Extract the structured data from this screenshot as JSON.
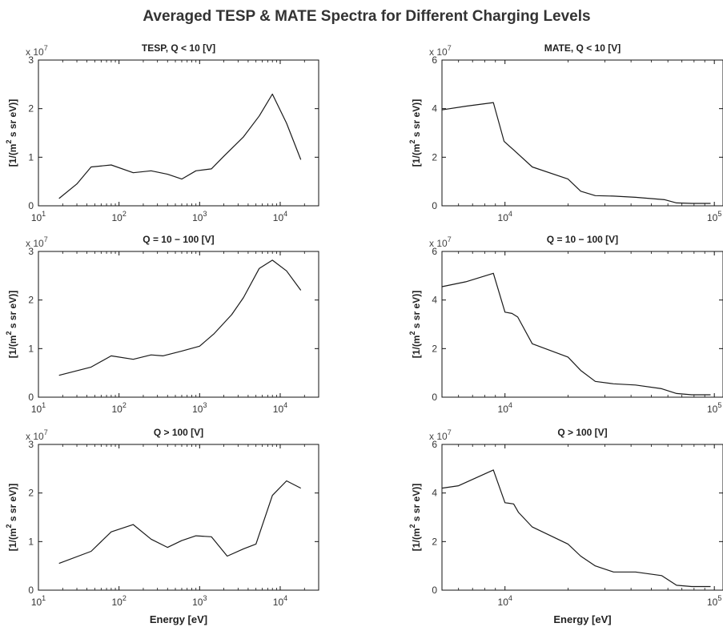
{
  "figure_title": "Averaged TESP & MATE Spectra for Different Charging Levels",
  "chart_data": [
    {
      "type": "line",
      "title": "TESP, Q < 10 [V]",
      "xlabel": "",
      "ylabel": "[1/(m^2 s sr eV)]",
      "y_scale_label": "x 10^7",
      "x_scale": "log",
      "xlim": [
        10,
        30000
      ],
      "ylim": [
        0,
        3
      ],
      "x_ticks": [
        "10^1",
        "10^2",
        "10^3",
        "10^4"
      ],
      "y_ticks": [
        "0",
        "1",
        "2",
        "3"
      ],
      "series": [
        {
          "x": [
            18,
            30,
            45,
            80,
            150,
            250,
            400,
            600,
            900,
            1400,
            2000,
            3500,
            5500,
            8000,
            12000,
            18000
          ],
          "y": [
            0.15,
            0.45,
            0.8,
            0.84,
            0.68,
            0.72,
            0.65,
            0.55,
            0.72,
            0.76,
            1.02,
            1.42,
            1.85,
            2.3,
            1.7,
            0.95
          ]
        }
      ]
    },
    {
      "type": "line",
      "title": "MATE, Q < 10 [V]",
      "xlabel": "",
      "ylabel": "[1/(m^2 s sr eV)]",
      "y_scale_label": "x 10^7",
      "x_scale": "log",
      "xlim": [
        5000,
        110000
      ],
      "ylim": [
        0,
        6
      ],
      "x_ticks": [
        "10^4",
        "10^5"
      ],
      "y_ticks": [
        "0",
        "2",
        "4",
        "6"
      ],
      "series": [
        {
          "x": [
            5000,
            6500,
            8800,
            9900,
            11000,
            13500,
            20000,
            23000,
            27000,
            33000,
            42000,
            58000,
            66000,
            78000,
            96000
          ],
          "y": [
            3.95,
            4.1,
            4.25,
            2.65,
            2.3,
            1.6,
            1.1,
            0.6,
            0.42,
            0.4,
            0.35,
            0.25,
            0.12,
            0.1,
            0.1
          ]
        }
      ]
    },
    {
      "type": "line",
      "title": "Q = 10 − 100 [V]",
      "xlabel": "",
      "ylabel": "[1/(m^2 s sr eV)]",
      "y_scale_label": "x 10^7",
      "x_scale": "log",
      "xlim": [
        10,
        30000
      ],
      "ylim": [
        0,
        3
      ],
      "x_ticks": [
        "10^1",
        "10^2",
        "10^3",
        "10^4"
      ],
      "y_ticks": [
        "0",
        "1",
        "2",
        "3"
      ],
      "series": [
        {
          "x": [
            18,
            45,
            80,
            150,
            250,
            350,
            600,
            1000,
            1500,
            2500,
            3500,
            5500,
            8000,
            12000,
            18000
          ],
          "y": [
            0.45,
            0.62,
            0.85,
            0.78,
            0.87,
            0.85,
            0.95,
            1.05,
            1.3,
            1.7,
            2.05,
            2.65,
            2.82,
            2.6,
            2.2
          ]
        }
      ]
    },
    {
      "type": "line",
      "title": "Q = 10 − 100 [V]",
      "xlabel": "",
      "ylabel": "[1/(m^2 s sr eV)]",
      "y_scale_label": "x 10^7",
      "x_scale": "log",
      "xlim": [
        5000,
        110000
      ],
      "ylim": [
        0,
        6
      ],
      "x_ticks": [
        "10^4",
        "10^5"
      ],
      "y_ticks": [
        "0",
        "2",
        "4",
        "6"
      ],
      "series": [
        {
          "x": [
            5000,
            6500,
            8800,
            10000,
            10800,
            11500,
            13500,
            20000,
            23000,
            27000,
            33000,
            42000,
            56000,
            66000,
            78000,
            96000
          ],
          "y": [
            4.55,
            4.75,
            5.1,
            3.5,
            3.45,
            3.3,
            2.2,
            1.65,
            1.1,
            0.65,
            0.55,
            0.5,
            0.35,
            0.15,
            0.1,
            0.1
          ]
        }
      ]
    },
    {
      "type": "line",
      "title": "Q > 100 [V]",
      "xlabel": "Energy  [eV]",
      "ylabel": "[1/(m^2 s sr eV)]",
      "y_scale_label": "x 10^7",
      "x_scale": "log",
      "xlim": [
        10,
        30000
      ],
      "ylim": [
        0,
        3
      ],
      "x_ticks": [
        "10^1",
        "10^2",
        "10^3",
        "10^4"
      ],
      "y_ticks": [
        "0",
        "1",
        "2",
        "3"
      ],
      "series": [
        {
          "x": [
            18,
            45,
            80,
            150,
            250,
            400,
            600,
            900,
            1400,
            2200,
            3500,
            5000,
            8000,
            12000,
            18000
          ],
          "y": [
            0.55,
            0.8,
            1.2,
            1.35,
            1.05,
            0.88,
            1.02,
            1.12,
            1.1,
            0.7,
            0.85,
            0.95,
            1.95,
            2.25,
            2.1
          ]
        }
      ]
    },
    {
      "type": "line",
      "title": "Q > 100 [V]",
      "xlabel": "Energy  [eV]",
      "ylabel": "[1/(m^2 s sr eV)]",
      "y_scale_label": "x 10^7",
      "x_scale": "log",
      "xlim": [
        5000,
        110000
      ],
      "ylim": [
        0,
        6
      ],
      "x_ticks": [
        "10^4",
        "10^5"
      ],
      "y_ticks": [
        "0",
        "2",
        "4",
        "6"
      ],
      "series": [
        {
          "x": [
            5000,
            6000,
            8800,
            10000,
            11000,
            11600,
            13500,
            20000,
            23000,
            27000,
            33000,
            42000,
            56000,
            66000,
            78000,
            96000
          ],
          "y": [
            4.2,
            4.3,
            4.95,
            3.6,
            3.55,
            3.2,
            2.6,
            1.9,
            1.4,
            1.0,
            0.75,
            0.75,
            0.6,
            0.2,
            0.15,
            0.15
          ]
        }
      ]
    }
  ]
}
